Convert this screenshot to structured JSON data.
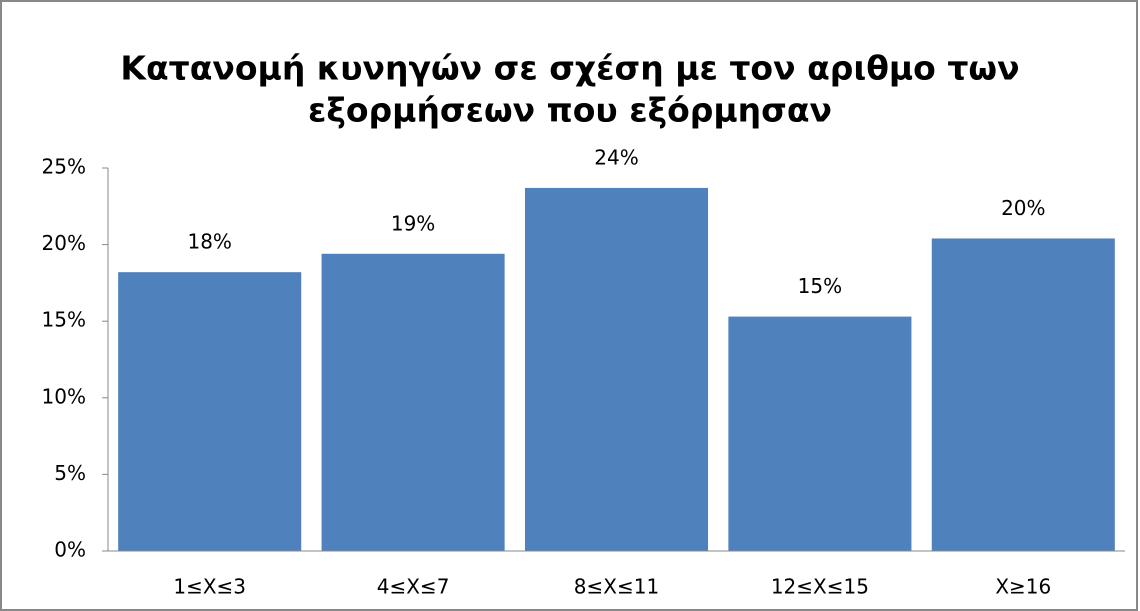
{
  "chart_data": {
    "type": "bar",
    "title": [
      "Κατανομή κυνηγών σε σχέση με τον αριθμο των",
      "εξορμήσεων που εξόρμησαν"
    ],
    "categories": [
      "1≤X≤3",
      "4≤X≤7",
      "8≤X≤11",
      "12≤X≤15",
      "X≥16"
    ],
    "values": [
      18.2,
      19.4,
      23.7,
      15.3,
      20.4
    ],
    "value_labels": [
      "18%",
      "19%",
      "24%",
      "15%",
      "20%"
    ],
    "color": "#4f81bd",
    "ylim": [
      0,
      25
    ],
    "yticks": [
      {
        "value": 0,
        "label": "0%"
      },
      {
        "value": 5,
        "label": "5%"
      },
      {
        "value": 10,
        "label": "10%"
      },
      {
        "value": 15,
        "label": "15%"
      },
      {
        "value": 20,
        "label": "20%"
      },
      {
        "value": 25,
        "label": "25%"
      }
    ],
    "grid": false
  }
}
